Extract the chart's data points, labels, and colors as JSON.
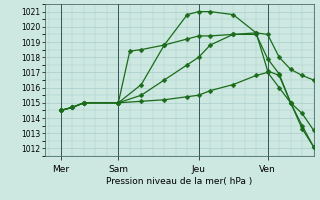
{
  "background_color": "#cce8e0",
  "grid_color": "#aacccc",
  "line_color": "#1a6b1a",
  "xlabel": "Pression niveau de la mer( hPa )",
  "ylim": [
    1011.5,
    1021.5
  ],
  "xlim": [
    -0.2,
    11.5
  ],
  "yticks": [
    1012,
    1013,
    1014,
    1015,
    1016,
    1017,
    1018,
    1019,
    1020,
    1021
  ],
  "xtick_labels": [
    "Mer",
    "Sam",
    "Jeu",
    "Ven"
  ],
  "xtick_positions": [
    0.5,
    3.0,
    6.5,
    9.5
  ],
  "vline_positions": [
    0.5,
    3.0,
    6.5,
    9.5
  ],
  "series": [
    {
      "x": [
        0.5,
        1.0,
        1.5,
        3.0,
        4.0,
        5.0,
        6.0,
        6.5,
        7.0,
        8.0,
        9.0,
        9.5,
        10.0,
        10.5,
        11.0,
        11.5
      ],
      "y": [
        1014.5,
        1014.7,
        1015.0,
        1015.0,
        1016.2,
        1018.8,
        1020.8,
        1021.0,
        1021.0,
        1020.8,
        1019.6,
        1017.1,
        1016.8,
        1015.0,
        1014.3,
        1013.2
      ]
    },
    {
      "x": [
        0.5,
        1.0,
        1.5,
        3.0,
        3.5,
        4.0,
        5.0,
        6.0,
        6.5,
        7.0,
        8.0,
        9.0,
        9.5,
        10.0,
        10.5,
        11.0,
        11.5
      ],
      "y": [
        1014.5,
        1014.7,
        1015.0,
        1015.0,
        1018.4,
        1018.5,
        1018.8,
        1019.2,
        1019.4,
        1019.4,
        1019.5,
        1019.5,
        1017.9,
        1016.9,
        1015.0,
        1013.3,
        1012.1
      ]
    },
    {
      "x": [
        0.5,
        1.0,
        1.5,
        3.0,
        4.0,
        5.0,
        6.0,
        6.5,
        7.0,
        8.0,
        9.0,
        9.5,
        10.0,
        10.5,
        11.0,
        11.5
      ],
      "y": [
        1014.5,
        1014.7,
        1015.0,
        1015.0,
        1015.5,
        1016.5,
        1017.5,
        1018.0,
        1018.8,
        1019.5,
        1019.6,
        1019.5,
        1018.0,
        1017.2,
        1016.8,
        1016.5
      ]
    },
    {
      "x": [
        0.5,
        1.0,
        1.5,
        3.0,
        4.0,
        5.0,
        6.0,
        6.5,
        7.0,
        8.0,
        9.0,
        9.5,
        10.0,
        10.5,
        11.0,
        11.5
      ],
      "y": [
        1014.5,
        1014.7,
        1015.0,
        1015.0,
        1015.1,
        1015.2,
        1015.4,
        1015.5,
        1015.8,
        1016.2,
        1016.8,
        1017.0,
        1016.0,
        1015.0,
        1013.5,
        1012.1
      ]
    }
  ]
}
